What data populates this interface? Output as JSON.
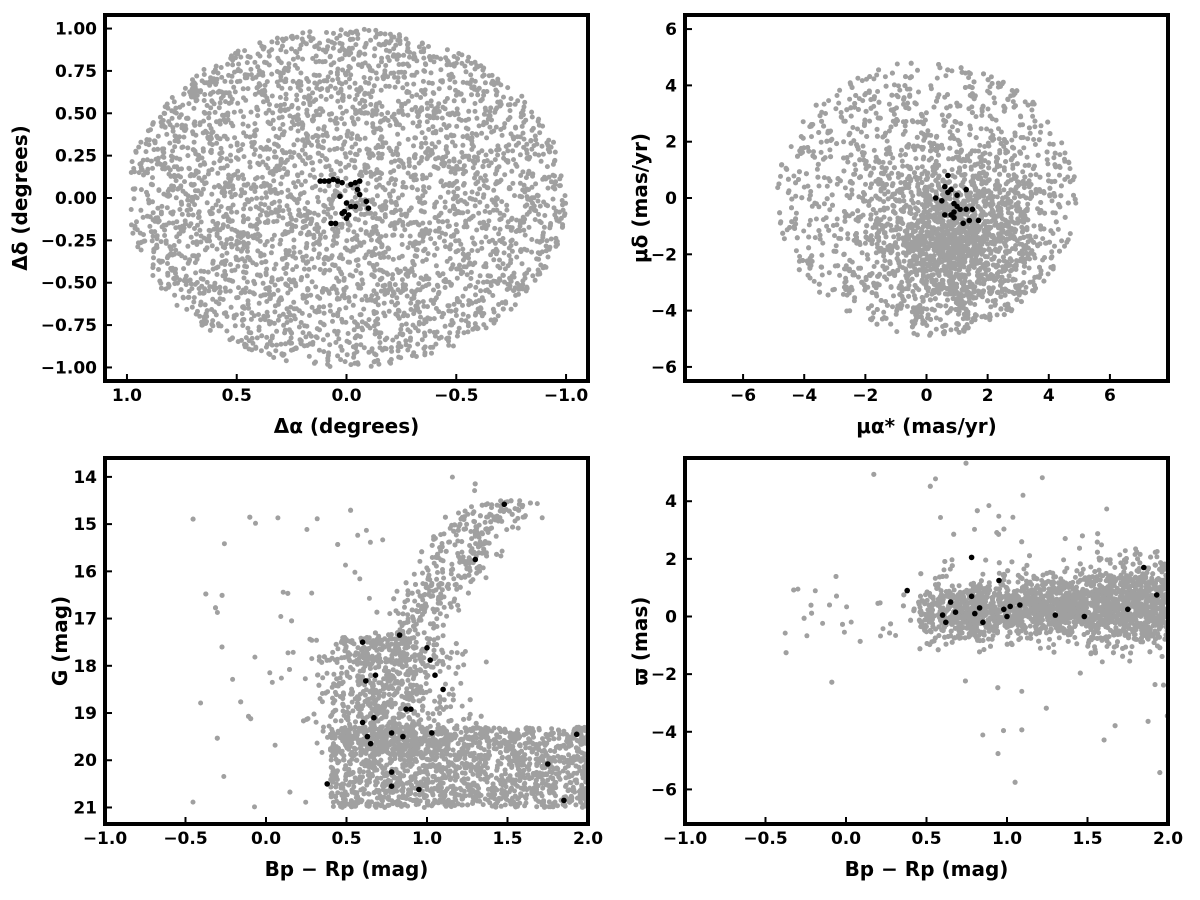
{
  "colors": {
    "field": "#a0a0a0",
    "members": "#000000",
    "frame": "#000000"
  },
  "chart_data": [
    {
      "type": "scatter",
      "xlabel": "Δα (degrees)",
      "ylabel": "Δδ (degrees)",
      "xlim": [
        1.1,
        -1.1
      ],
      "ylim": [
        -1.08,
        1.08
      ],
      "xticks": [
        1.0,
        0.5,
        0.0,
        -0.5,
        -1.0
      ],
      "xtick_labels": [
        "1.0",
        "0.5",
        "0.0",
        "−0.5",
        "−1.0"
      ],
      "yticks": [
        -1.0,
        -0.75,
        -0.5,
        -0.25,
        0.0,
        0.25,
        0.5,
        0.75,
        1.0
      ],
      "ytick_labels": [
        "−1.00",
        "−0.75",
        "−0.50",
        "−0.25",
        "0.00",
        "0.25",
        "0.50",
        "0.75",
        "1.00"
      ],
      "grid": false,
      "series": [
        {
          "role": "field",
          "color": "#a0a0a0",
          "count": 3500,
          "distribution": {
            "shape": "disk",
            "center": [
              0.0,
              0.0
            ],
            "radius": 1.0
          }
        },
        {
          "role": "members",
          "color": "#000000",
          "points": [
            [
              0.12,
              0.1
            ],
            [
              0.1,
              0.1
            ],
            [
              0.08,
              0.1
            ],
            [
              0.06,
              0.11
            ],
            [
              0.04,
              0.1
            ],
            [
              0.02,
              0.09
            ],
            [
              -0.02,
              0.08
            ],
            [
              -0.04,
              0.09
            ],
            [
              -0.06,
              0.1
            ],
            [
              -0.05,
              0.05
            ],
            [
              -0.06,
              0.02
            ],
            [
              0.03,
              0.01
            ],
            [
              0.0,
              -0.03
            ],
            [
              -0.02,
              -0.05
            ],
            [
              0.01,
              -0.08
            ],
            [
              -0.01,
              -0.1
            ],
            [
              0.0,
              -0.12
            ],
            [
              0.05,
              -0.15
            ],
            [
              0.07,
              -0.15
            ],
            [
              -0.04,
              -0.05
            ],
            [
              -0.09,
              -0.02
            ],
            [
              -0.1,
              -0.06
            ],
            [
              0.02,
              -0.09
            ]
          ]
        }
      ]
    },
    {
      "type": "scatter",
      "xlabel": "μα* (mas/yr)",
      "ylabel": "μδ (mas/yr)",
      "xlim": [
        -7.9,
        7.9
      ],
      "ylim": [
        -6.5,
        6.5
      ],
      "xticks": [
        -6,
        -4,
        -2,
        0,
        2,
        4,
        6
      ],
      "xtick_labels": [
        "−6",
        "−4",
        "−2",
        "0",
        "2",
        "4",
        "6"
      ],
      "yticks": [
        -6,
        -4,
        -2,
        0,
        2,
        4,
        6
      ],
      "ytick_labels": [
        "−6",
        "−4",
        "−2",
        "0",
        "2",
        "4",
        "6"
      ],
      "grid": false,
      "series": [
        {
          "role": "field",
          "color": "#a0a0a0",
          "count": 3500,
          "distribution": {
            "shape": "disk",
            "center": [
              0.0,
              0.0
            ],
            "radius": 4.9
          }
        },
        {
          "role": "members",
          "color": "#000000",
          "points": [
            [
              0.3,
              0.0
            ],
            [
              0.5,
              -0.1
            ],
            [
              0.7,
              0.8
            ],
            [
              0.6,
              0.4
            ],
            [
              0.7,
              0.2
            ],
            [
              0.8,
              0.3
            ],
            [
              0.9,
              -0.2
            ],
            [
              1.0,
              0.1
            ],
            [
              1.0,
              -0.3
            ],
            [
              0.9,
              -0.5
            ],
            [
              0.8,
              -0.6
            ],
            [
              1.1,
              -0.4
            ],
            [
              1.3,
              0.3
            ],
            [
              1.3,
              -0.4
            ],
            [
              1.5,
              -0.4
            ],
            [
              1.7,
              -0.8
            ],
            [
              1.4,
              -0.8
            ],
            [
              0.9,
              -0.7
            ],
            [
              1.2,
              -0.9
            ],
            [
              0.6,
              -0.6
            ]
          ]
        }
      ]
    },
    {
      "type": "scatter",
      "xlabel": "Bp − Rp (mag)",
      "ylabel": "G (mag)",
      "xlim": [
        -1.0,
        2.0
      ],
      "ylim": [
        21.35,
        13.6
      ],
      "xticks": [
        -1.0,
        -0.5,
        0.0,
        0.5,
        1.0,
        1.5,
        2.0
      ],
      "xtick_labels": [
        "−1.0",
        "−0.5",
        "0.0",
        "0.5",
        "1.0",
        "1.5",
        "2.0"
      ],
      "yticks": [
        14,
        15,
        16,
        17,
        18,
        19,
        20,
        21
      ],
      "ytick_labels": [
        "14",
        "15",
        "16",
        "17",
        "18",
        "19",
        "20",
        "21"
      ],
      "grid": false,
      "series": [
        {
          "role": "field",
          "color": "#a0a0a0",
          "count": 3500,
          "distribution": {
            "shape": "cmd"
          }
        },
        {
          "role": "members",
          "color": "#000000",
          "points": [
            [
              0.38,
              20.5
            ],
            [
              0.78,
              20.55
            ],
            [
              0.95,
              20.62
            ],
            [
              0.78,
              20.25
            ],
            [
              1.85,
              20.85
            ],
            [
              1.75,
              20.08
            ],
            [
              1.93,
              19.45
            ],
            [
              0.65,
              19.65
            ],
            [
              0.63,
              19.5
            ],
            [
              0.6,
              19.2
            ],
            [
              0.67,
              19.1
            ],
            [
              0.78,
              19.42
            ],
            [
              0.85,
              19.5
            ],
            [
              0.87,
              18.92
            ],
            [
              0.9,
              18.92
            ],
            [
              1.03,
              19.42
            ],
            [
              1.1,
              18.5
            ],
            [
              0.62,
              18.32
            ],
            [
              0.68,
              18.2
            ],
            [
              1.05,
              18.2
            ],
            [
              1.02,
              17.88
            ],
            [
              1.0,
              17.62
            ],
            [
              0.6,
              17.5
            ],
            [
              0.83,
              17.35
            ],
            [
              1.3,
              15.75
            ],
            [
              1.48,
              14.58
            ]
          ]
        }
      ]
    },
    {
      "type": "scatter",
      "xlabel": "Bp − Rp (mag)",
      "ylabel": "ϖ (mas)",
      "xlim": [
        -1.0,
        2.0
      ],
      "ylim": [
        -7.2,
        5.5
      ],
      "xticks": [
        -1.0,
        -0.5,
        0.0,
        0.5,
        1.0,
        1.5,
        2.0
      ],
      "xtick_labels": [
        "−1.0",
        "−0.5",
        "0.0",
        "0.5",
        "1.0",
        "1.5",
        "2.0"
      ],
      "yticks": [
        -6,
        -4,
        -2,
        0,
        2,
        4
      ],
      "ytick_labels": [
        "−6",
        "−4",
        "−2",
        "0",
        "2",
        "4"
      ],
      "grid": false,
      "series": [
        {
          "role": "field",
          "color": "#a0a0a0",
          "count": 3500,
          "distribution": {
            "shape": "band"
          }
        },
        {
          "role": "members",
          "color": "#000000",
          "points": [
            [
              0.38,
              0.9
            ],
            [
              0.6,
              0.05
            ],
            [
              0.62,
              -0.2
            ],
            [
              0.65,
              0.5
            ],
            [
              0.68,
              0.15
            ],
            [
              0.78,
              2.05
            ],
            [
              0.78,
              0.7
            ],
            [
              0.8,
              0.1
            ],
            [
              0.83,
              0.3
            ],
            [
              0.85,
              -0.2
            ],
            [
              0.95,
              1.25
            ],
            [
              0.98,
              0.25
            ],
            [
              1.0,
              0.0
            ],
            [
              1.02,
              0.35
            ],
            [
              1.08,
              0.4
            ],
            [
              1.3,
              0.05
            ],
            [
              1.48,
              0.0
            ],
            [
              1.75,
              0.25
            ],
            [
              1.85,
              1.7
            ],
            [
              1.93,
              0.75
            ]
          ]
        }
      ]
    }
  ]
}
